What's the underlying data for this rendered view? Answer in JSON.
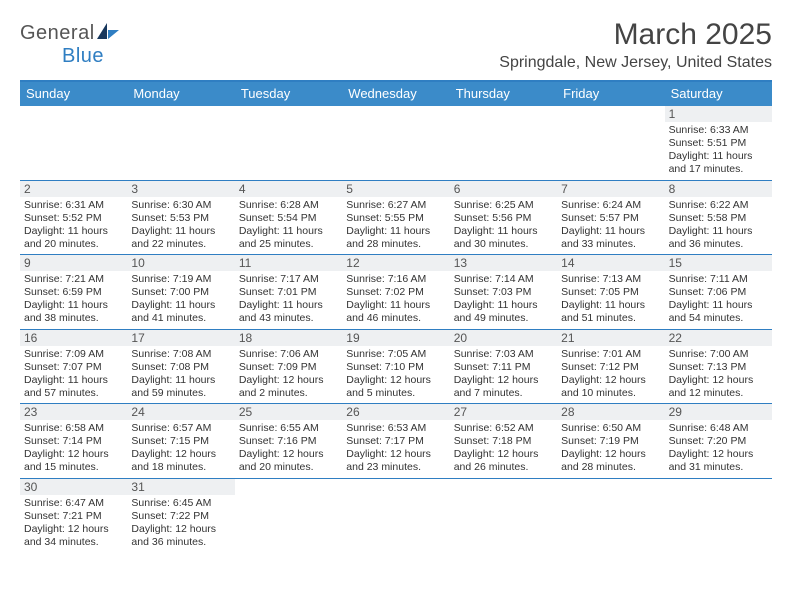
{
  "logo": {
    "text1": "General",
    "text2": "Blue"
  },
  "title": "March 2025",
  "location": "Springdale, New Jersey, United States",
  "colors": {
    "header_bg": "#3b8bc9",
    "header_border": "#2f7ec2",
    "daybar_bg": "#eef0f2",
    "text": "#333333"
  },
  "day_headers": [
    "Sunday",
    "Monday",
    "Tuesday",
    "Wednesday",
    "Thursday",
    "Friday",
    "Saturday"
  ],
  "weeks": [
    [
      null,
      null,
      null,
      null,
      null,
      null,
      {
        "n": "1",
        "sr": "Sunrise: 6:33 AM",
        "ss": "Sunset: 5:51 PM",
        "d1": "Daylight: 11 hours",
        "d2": "and 17 minutes."
      }
    ],
    [
      {
        "n": "2",
        "sr": "Sunrise: 6:31 AM",
        "ss": "Sunset: 5:52 PM",
        "d1": "Daylight: 11 hours",
        "d2": "and 20 minutes."
      },
      {
        "n": "3",
        "sr": "Sunrise: 6:30 AM",
        "ss": "Sunset: 5:53 PM",
        "d1": "Daylight: 11 hours",
        "d2": "and 22 minutes."
      },
      {
        "n": "4",
        "sr": "Sunrise: 6:28 AM",
        "ss": "Sunset: 5:54 PM",
        "d1": "Daylight: 11 hours",
        "d2": "and 25 minutes."
      },
      {
        "n": "5",
        "sr": "Sunrise: 6:27 AM",
        "ss": "Sunset: 5:55 PM",
        "d1": "Daylight: 11 hours",
        "d2": "and 28 minutes."
      },
      {
        "n": "6",
        "sr": "Sunrise: 6:25 AM",
        "ss": "Sunset: 5:56 PM",
        "d1": "Daylight: 11 hours",
        "d2": "and 30 minutes."
      },
      {
        "n": "7",
        "sr": "Sunrise: 6:24 AM",
        "ss": "Sunset: 5:57 PM",
        "d1": "Daylight: 11 hours",
        "d2": "and 33 minutes."
      },
      {
        "n": "8",
        "sr": "Sunrise: 6:22 AM",
        "ss": "Sunset: 5:58 PM",
        "d1": "Daylight: 11 hours",
        "d2": "and 36 minutes."
      }
    ],
    [
      {
        "n": "9",
        "sr": "Sunrise: 7:21 AM",
        "ss": "Sunset: 6:59 PM",
        "d1": "Daylight: 11 hours",
        "d2": "and 38 minutes."
      },
      {
        "n": "10",
        "sr": "Sunrise: 7:19 AM",
        "ss": "Sunset: 7:00 PM",
        "d1": "Daylight: 11 hours",
        "d2": "and 41 minutes."
      },
      {
        "n": "11",
        "sr": "Sunrise: 7:17 AM",
        "ss": "Sunset: 7:01 PM",
        "d1": "Daylight: 11 hours",
        "d2": "and 43 minutes."
      },
      {
        "n": "12",
        "sr": "Sunrise: 7:16 AM",
        "ss": "Sunset: 7:02 PM",
        "d1": "Daylight: 11 hours",
        "d2": "and 46 minutes."
      },
      {
        "n": "13",
        "sr": "Sunrise: 7:14 AM",
        "ss": "Sunset: 7:03 PM",
        "d1": "Daylight: 11 hours",
        "d2": "and 49 minutes."
      },
      {
        "n": "14",
        "sr": "Sunrise: 7:13 AM",
        "ss": "Sunset: 7:05 PM",
        "d1": "Daylight: 11 hours",
        "d2": "and 51 minutes."
      },
      {
        "n": "15",
        "sr": "Sunrise: 7:11 AM",
        "ss": "Sunset: 7:06 PM",
        "d1": "Daylight: 11 hours",
        "d2": "and 54 minutes."
      }
    ],
    [
      {
        "n": "16",
        "sr": "Sunrise: 7:09 AM",
        "ss": "Sunset: 7:07 PM",
        "d1": "Daylight: 11 hours",
        "d2": "and 57 minutes."
      },
      {
        "n": "17",
        "sr": "Sunrise: 7:08 AM",
        "ss": "Sunset: 7:08 PM",
        "d1": "Daylight: 11 hours",
        "d2": "and 59 minutes."
      },
      {
        "n": "18",
        "sr": "Sunrise: 7:06 AM",
        "ss": "Sunset: 7:09 PM",
        "d1": "Daylight: 12 hours",
        "d2": "and 2 minutes."
      },
      {
        "n": "19",
        "sr": "Sunrise: 7:05 AM",
        "ss": "Sunset: 7:10 PM",
        "d1": "Daylight: 12 hours",
        "d2": "and 5 minutes."
      },
      {
        "n": "20",
        "sr": "Sunrise: 7:03 AM",
        "ss": "Sunset: 7:11 PM",
        "d1": "Daylight: 12 hours",
        "d2": "and 7 minutes."
      },
      {
        "n": "21",
        "sr": "Sunrise: 7:01 AM",
        "ss": "Sunset: 7:12 PM",
        "d1": "Daylight: 12 hours",
        "d2": "and 10 minutes."
      },
      {
        "n": "22",
        "sr": "Sunrise: 7:00 AM",
        "ss": "Sunset: 7:13 PM",
        "d1": "Daylight: 12 hours",
        "d2": "and 12 minutes."
      }
    ],
    [
      {
        "n": "23",
        "sr": "Sunrise: 6:58 AM",
        "ss": "Sunset: 7:14 PM",
        "d1": "Daylight: 12 hours",
        "d2": "and 15 minutes."
      },
      {
        "n": "24",
        "sr": "Sunrise: 6:57 AM",
        "ss": "Sunset: 7:15 PM",
        "d1": "Daylight: 12 hours",
        "d2": "and 18 minutes."
      },
      {
        "n": "25",
        "sr": "Sunrise: 6:55 AM",
        "ss": "Sunset: 7:16 PM",
        "d1": "Daylight: 12 hours",
        "d2": "and 20 minutes."
      },
      {
        "n": "26",
        "sr": "Sunrise: 6:53 AM",
        "ss": "Sunset: 7:17 PM",
        "d1": "Daylight: 12 hours",
        "d2": "and 23 minutes."
      },
      {
        "n": "27",
        "sr": "Sunrise: 6:52 AM",
        "ss": "Sunset: 7:18 PM",
        "d1": "Daylight: 12 hours",
        "d2": "and 26 minutes."
      },
      {
        "n": "28",
        "sr": "Sunrise: 6:50 AM",
        "ss": "Sunset: 7:19 PM",
        "d1": "Daylight: 12 hours",
        "d2": "and 28 minutes."
      },
      {
        "n": "29",
        "sr": "Sunrise: 6:48 AM",
        "ss": "Sunset: 7:20 PM",
        "d1": "Daylight: 12 hours",
        "d2": "and 31 minutes."
      }
    ],
    [
      {
        "n": "30",
        "sr": "Sunrise: 6:47 AM",
        "ss": "Sunset: 7:21 PM",
        "d1": "Daylight: 12 hours",
        "d2": "and 34 minutes."
      },
      {
        "n": "31",
        "sr": "Sunrise: 6:45 AM",
        "ss": "Sunset: 7:22 PM",
        "d1": "Daylight: 12 hours",
        "d2": "and 36 minutes."
      },
      null,
      null,
      null,
      null,
      null
    ]
  ]
}
